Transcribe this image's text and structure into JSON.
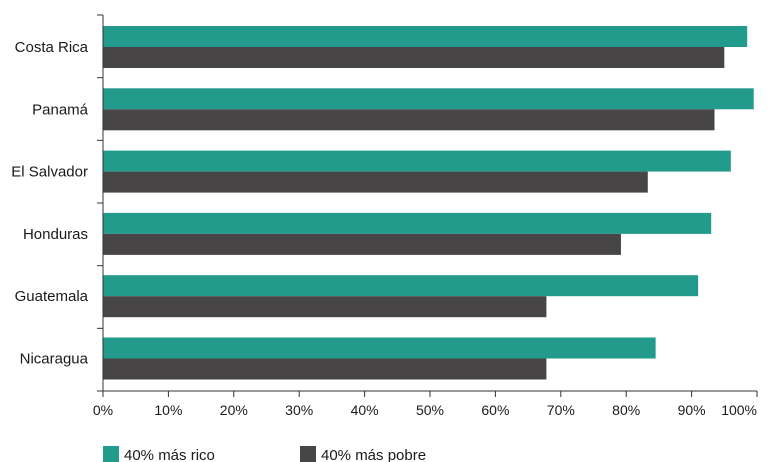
{
  "chart_data": {
    "type": "bar",
    "orientation": "horizontal",
    "categories": [
      "Costa Rica",
      "Panamá",
      "El Salvador",
      "Honduras",
      "Guatemala",
      "Nicaragua"
    ],
    "series": [
      {
        "name": "40% más rico",
        "color": "#239b8c",
        "values": [
          98.5,
          99.5,
          96,
          93,
          91,
          84.5
        ]
      },
      {
        "name": "40% más pobre",
        "color": "#474546",
        "values": [
          95,
          93.5,
          83.3,
          79.2,
          67.8,
          67.8
        ]
      }
    ],
    "x_ticks": [
      "0%",
      "10%",
      "20%",
      "30%",
      "40%",
      "50%",
      "60%",
      "70%",
      "80%",
      "90%",
      "100%"
    ],
    "xlim": [
      0,
      100
    ],
    "grid": false,
    "legend_position": "bottom-left",
    "title": "",
    "xlabel": "",
    "ylabel": ""
  }
}
